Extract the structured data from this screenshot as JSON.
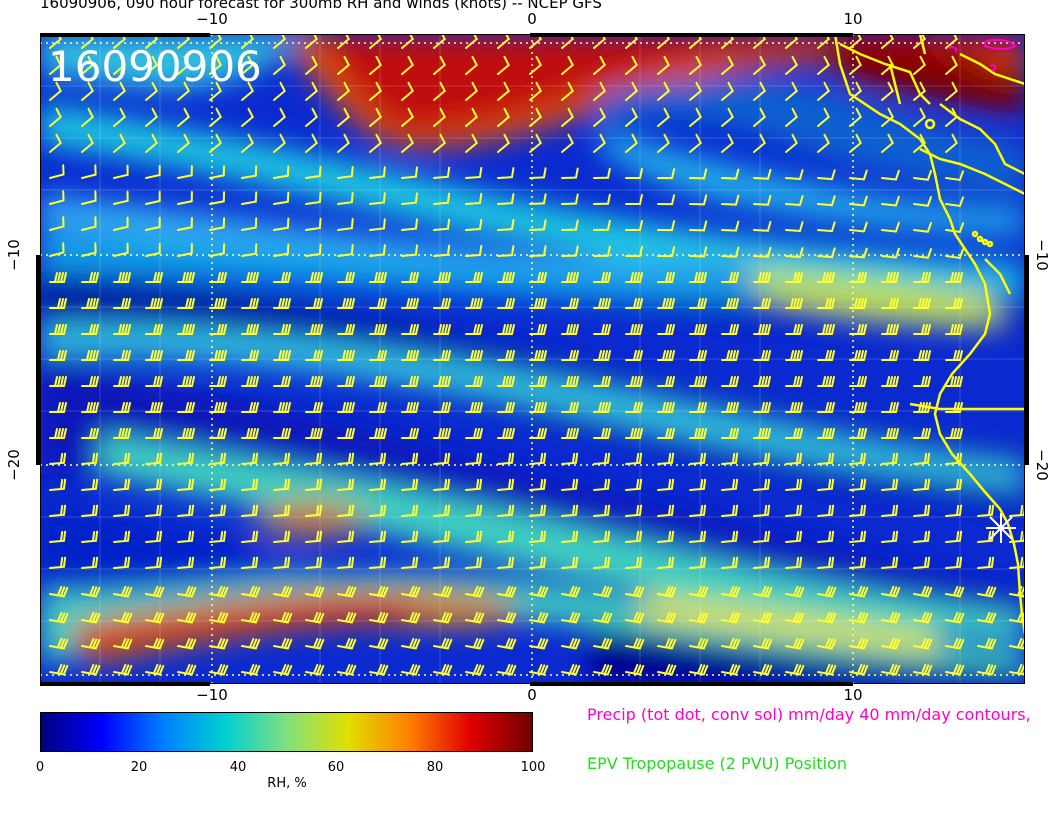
{
  "title": "16090906, 090 hour forecast for 300mb RH and winds (knots) -- NCEP GFS",
  "stamp": "16090906",
  "axes": {
    "top_ticks": [
      "−10",
      "0",
      "10"
    ],
    "bottom_ticks": [
      "−10",
      "0",
      "10"
    ],
    "left_ticks": [
      "−10",
      "−20"
    ],
    "right_ticks": [
      "−10",
      "−20"
    ]
  },
  "colorbar": {
    "label": "RH, %",
    "ticks": [
      "0",
      "20",
      "40",
      "60",
      "80",
      "100"
    ],
    "stops": [
      "#000080",
      "#0000ff",
      "#0080ff",
      "#00d0d0",
      "#80e080",
      "#e0e000",
      "#ff8000",
      "#e00000",
      "#700000"
    ]
  },
  "notes": {
    "precip": "Precip (tot dot, conv sol) mm/day 40 mm/day contours,",
    "epv": "EPV Tropopause (2 PVU) Position"
  },
  "colors": {
    "barbs": "#ffff33",
    "coast": "#ffff00",
    "grid": "#ffff99",
    "precip_contour": "#ff00cc",
    "epv": "#22dd22"
  },
  "map_data": {
    "lon_range": [
      -15.5,
      15
    ],
    "lat_range": [
      -30,
      0
    ],
    "gridlines_lon": [
      -10,
      0,
      10
    ],
    "gridlines_lat": [
      -10,
      -20
    ],
    "marker": {
      "type": "white-star",
      "lon": 14.5,
      "lat": -23
    }
  }
}
